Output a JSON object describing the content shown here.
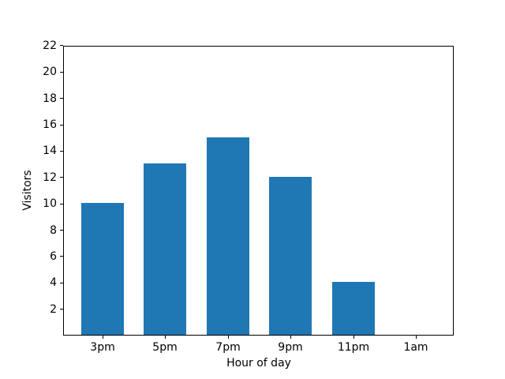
{
  "chart_data": {
    "type": "bar",
    "categories": [
      "3pm",
      "5pm",
      "7pm",
      "9pm",
      "11pm",
      "1am"
    ],
    "values": [
      10,
      13,
      15,
      12,
      4,
      0
    ],
    "xlabel": "Hour of day",
    "ylabel": "Visitors",
    "yticks": [
      2,
      4,
      6,
      8,
      10,
      12,
      14,
      16,
      18,
      20,
      22
    ],
    "ylim": [
      0,
      22
    ],
    "bar_color": "#1f77b4",
    "grid": false,
    "legend": "none"
  }
}
